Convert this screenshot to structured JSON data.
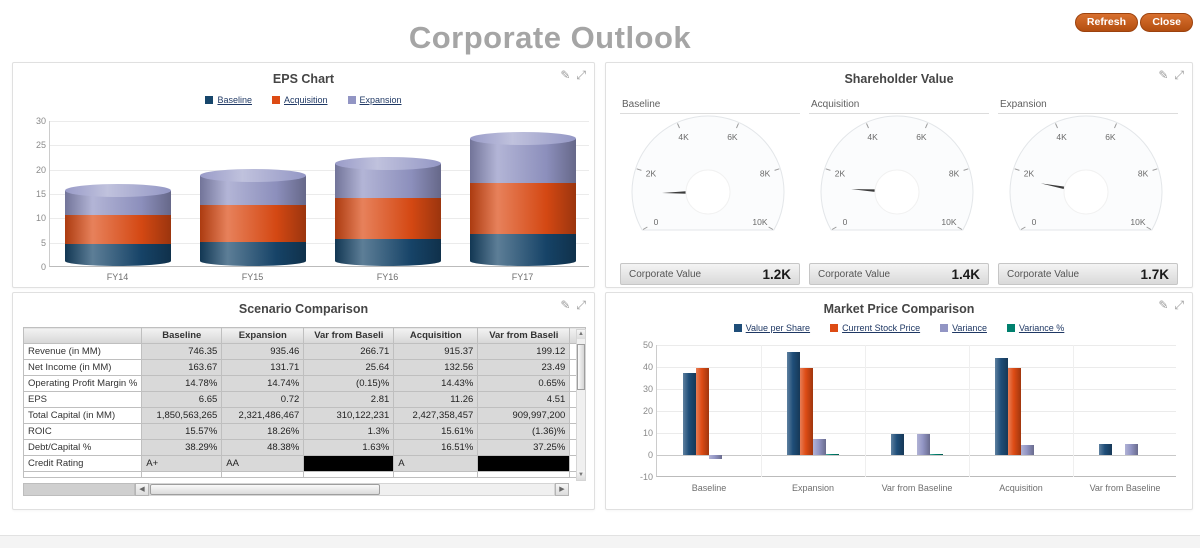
{
  "page": {
    "title": "Corporate Outlook"
  },
  "toolbar": {
    "refresh_label": "Refresh",
    "close_label": "Close"
  },
  "icons": {
    "edit": "✎",
    "maximize": "⤢"
  },
  "chart_data": [
    {
      "id": "eps",
      "type": "bar",
      "subtype": "stacked-cylinder",
      "title": "EPS Chart",
      "categories": [
        "FY14",
        "FY15",
        "FY16",
        "FY17"
      ],
      "series": [
        {
          "name": "Baseline",
          "color": "#17466B",
          "values": [
            4.5,
            5,
            5.5,
            6.5
          ]
        },
        {
          "name": "Acquisition",
          "color": "#DD4B14",
          "values": [
            6,
            7.5,
            8.5,
            10.5
          ]
        },
        {
          "name": "Expansion",
          "color": "#9295C4",
          "values": [
            5,
            6,
            7,
            9
          ]
        }
      ],
      "ylim": [
        0,
        30
      ],
      "yticks": [
        0,
        5,
        10,
        15,
        20,
        25,
        30
      ],
      "grid": true,
      "legend_position": "top"
    },
    {
      "id": "shareholder",
      "type": "gauge-set",
      "title": "Shareholder Value",
      "min": 0,
      "max": 10000,
      "tick_labels": [
        "0",
        "2K",
        "4K",
        "6K",
        "8K",
        "10K"
      ],
      "footer_label": "Corporate Value",
      "gauges": [
        {
          "label": "Baseline",
          "value": 1200,
          "display": "1.2K"
        },
        {
          "label": "Acquisition",
          "value": 1400,
          "display": "1.4K"
        },
        {
          "label": "Expansion",
          "value": 1700,
          "display": "1.7K"
        }
      ]
    },
    {
      "id": "scenario",
      "type": "table",
      "title": "Scenario Comparison",
      "columns": [
        "",
        "Baseline",
        "Expansion",
        "Var from Baseli",
        "Acquisition",
        "Var from Baseli"
      ],
      "rows": [
        {
          "label": "Revenue (in MM)",
          "cells": [
            "746.35",
            "935.46",
            "266.71",
            "915.37",
            "199.12"
          ]
        },
        {
          "label": "Net Income (in MM)",
          "cells": [
            "163.67",
            "131.71",
            "25.64",
            "132.56",
            "23.49"
          ]
        },
        {
          "label": "Operating Profit Margin %",
          "cells": [
            "14.78%",
            "14.74%",
            "(0.15)%",
            "14.43%",
            "0.65%"
          ]
        },
        {
          "label": "EPS",
          "cells": [
            "6.65",
            "0.72",
            "2.81",
            "11.26",
            "4.51"
          ]
        },
        {
          "label": "Total Capital (in MM)",
          "cells": [
            "1,850,563,265",
            "2,321,486,467",
            "310,122,231",
            "2,427,358,457",
            "909,997,200"
          ]
        },
        {
          "label": "ROIC",
          "cells": [
            "15.57%",
            "18.26%",
            "1.3%",
            "15.61%",
            "(1.36)%"
          ]
        },
        {
          "label": "Debt/Capital %",
          "cells": [
            "38.29%",
            "48.38%",
            "1.63%",
            "16.51%",
            "37.25%"
          ]
        },
        {
          "label": "Credit Rating",
          "cells": [
            "A+",
            "AA",
            null,
            "A",
            null
          ]
        }
      ]
    },
    {
      "id": "market",
      "type": "bar",
      "subtype": "grouped-3d",
      "title": "Market Price Comparison",
      "categories": [
        "Baseline",
        "Expansion",
        "Var from Baseline",
        "Acquisition",
        "Var from Baseline"
      ],
      "series": [
        {
          "name": "Value per Share",
          "color": "#1F4E79",
          "values": [
            37.5,
            47,
            9.5,
            44,
            5
          ]
        },
        {
          "name": "Current Stock Price",
          "color": "#DD4B14",
          "values": [
            39.5,
            39.5,
            0,
            39.5,
            0
          ]
        },
        {
          "name": "Variance",
          "color": "#9295C4",
          "values": [
            -2,
            7.5,
            9.5,
            4.5,
            5
          ]
        },
        {
          "name": "Variance %",
          "color": "#00806E",
          "values": [
            0,
            0.5,
            0.3,
            0,
            0
          ]
        }
      ],
      "ylim": [
        -10,
        50
      ],
      "yticks": [
        -10,
        0,
        10,
        20,
        30,
        40,
        50
      ],
      "grid": true,
      "legend_position": "top"
    }
  ]
}
